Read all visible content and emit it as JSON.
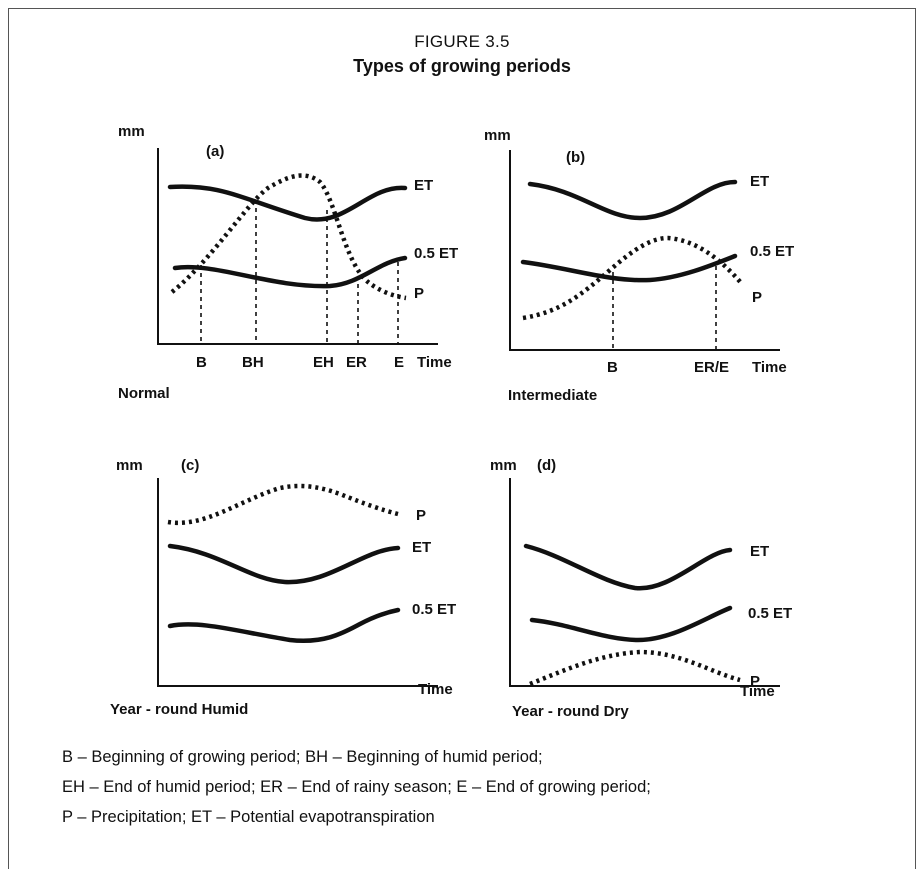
{
  "figure": {
    "number": "FIGURE 3.5",
    "title": "Types of growing periods"
  },
  "panels": {
    "a": {
      "id": "(a)",
      "y_axis": "mm",
      "x_axis": "Time",
      "caption": "Normal",
      "curves": {
        "et": "ET",
        "half_et": "0.5 ET",
        "p": "P"
      },
      "markers": [
        "B",
        "BH",
        "EH",
        "ER",
        "E"
      ]
    },
    "b": {
      "id": "(b)",
      "y_axis": "mm",
      "x_axis": "Time",
      "caption": "Intermediate",
      "curves": {
        "et": "ET",
        "half_et": "0.5 ET",
        "p": "P"
      },
      "markers": [
        "B",
        "ER/E"
      ]
    },
    "c": {
      "id": "(c)",
      "y_axis": "mm",
      "x_axis": "Time",
      "caption": "Year - round Humid",
      "curves": {
        "et": "ET",
        "half_et": "0.5 ET",
        "p": "P"
      }
    },
    "d": {
      "id": "(d)",
      "y_axis": "mm",
      "x_axis": "Time",
      "caption": "Year - round Dry",
      "curves": {
        "et": "ET",
        "half_et": "0.5 ET",
        "p": "P"
      }
    }
  },
  "legend": {
    "line1": "B – Beginning of growing period; BH – Beginning of humid period;",
    "line2": "EH – End of humid period; ER – End of rainy season; E – End of growing period;",
    "line3": "P – Precipitation; ET – Potential evapotranspiration"
  }
}
